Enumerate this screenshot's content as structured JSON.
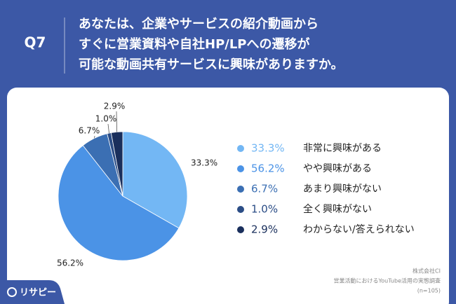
{
  "question_number": "Q7",
  "chart_data": {
    "type": "pie",
    "title": [
      "あなたは、企業やサービスの紹介動画から",
      "すぐに営業資料や自社HP/LPへの遷移が",
      "可能な動画共有サービスに興味がありますか。"
    ],
    "categories": [
      "非常に興味がある",
      "やや興味がある",
      "あまり興味がない",
      "全く興味がない",
      "わからない/答えられない"
    ],
    "values": [
      33.3,
      56.2,
      6.7,
      1.0,
      2.9
    ],
    "value_labels": [
      "33.3%",
      "56.2%",
      "6.7%",
      "1.0%",
      "2.9%"
    ],
    "colors": [
      "#73b7f4",
      "#4b93e6",
      "#3b6fb3",
      "#2b4d86",
      "#1a2f5c"
    ]
  },
  "source": [
    "株式会社CI",
    "営業活動におけるYouTube活用の実態調査",
    "(n=105)"
  ],
  "brand": "リサピー"
}
